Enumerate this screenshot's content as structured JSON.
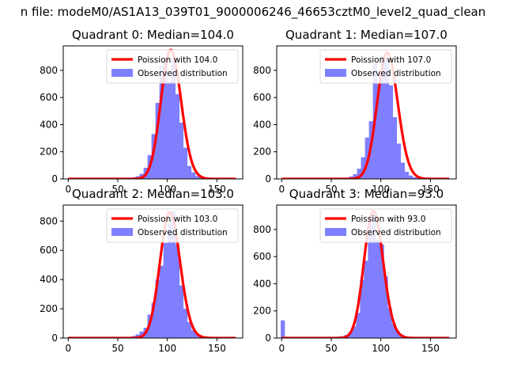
{
  "figure": {
    "suptitle": "n file: modeM0/AS1A13_039T01_9000006246_46653cztM0_level2_quad_clean"
  },
  "chart_data": [
    {
      "type": "bar",
      "title": "Quadrant 0: Median=104.0",
      "xlim": [
        -5,
        176
      ],
      "ylim": [
        0,
        980
      ],
      "xticks": [
        0,
        50,
        100,
        150
      ],
      "yticks": [
        0,
        200,
        400,
        600,
        800
      ],
      "legend_position": "top-right",
      "series": [
        {
          "name": "Poission with 104.0",
          "kind": "line",
          "color": "#ff0000",
          "mean": 104.0,
          "peak": 950,
          "x_range": [
            0,
            169
          ]
        },
        {
          "name": "Observed distribution",
          "kind": "histogram",
          "color": "#7f7fff",
          "bin_edges": [
            60,
            64,
            68,
            72,
            76,
            80,
            84,
            88,
            92,
            96,
            100,
            104,
            108,
            112,
            116,
            120,
            124,
            128,
            132,
            136,
            140,
            144,
            148
          ],
          "counts": [
            5,
            12,
            20,
            38,
            82,
            175,
            330,
            560,
            835,
            890,
            715,
            890,
            625,
            415,
            230,
            95,
            48,
            22,
            12,
            8,
            5,
            3
          ]
        }
      ]
    },
    {
      "type": "bar",
      "title": "Quadrant 1: Median=107.0",
      "xlim": [
        -5,
        176
      ],
      "ylim": [
        0,
        980
      ],
      "xticks": [
        0,
        50,
        100,
        150
      ],
      "yticks": [
        0,
        200,
        400,
        600,
        800
      ],
      "legend_position": "top-right",
      "series": [
        {
          "name": "Poission with 107.0",
          "kind": "line",
          "color": "#ff0000",
          "mean": 107.0,
          "peak": 930,
          "x_range": [
            0,
            169
          ]
        },
        {
          "name": "Observed distribution",
          "kind": "histogram",
          "color": "#7f7fff",
          "bin_edges": [
            60,
            64,
            68,
            72,
            76,
            80,
            84,
            88,
            92,
            96,
            100,
            104,
            108,
            112,
            116,
            120,
            124,
            128,
            132,
            136,
            140,
            144,
            148
          ],
          "counts": [
            4,
            10,
            18,
            35,
            75,
            160,
            305,
            425,
            850,
            700,
            905,
            880,
            690,
            455,
            260,
            120,
            52,
            25,
            12,
            7,
            4,
            2
          ]
        }
      ]
    },
    {
      "type": "bar",
      "title": "Quadrant 2: Median=103.0",
      "xlim": [
        -5,
        176
      ],
      "ylim": [
        0,
        910
      ],
      "xticks": [
        0,
        50,
        100,
        150
      ],
      "yticks": [
        0,
        200,
        400,
        600,
        800
      ],
      "legend_position": "top-right",
      "series": [
        {
          "name": "Poission with 103.0",
          "kind": "line",
          "color": "#ff0000",
          "mean": 103.0,
          "peak": 860,
          "x_range": [
            0,
            169
          ]
        },
        {
          "name": "Observed distribution",
          "kind": "histogram",
          "color": "#7f7fff",
          "bin_edges": [
            60,
            64,
            68,
            72,
            76,
            80,
            84,
            88,
            92,
            96,
            100,
            104,
            108,
            112,
            116,
            120,
            124,
            128,
            132,
            136,
            140,
            144,
            148
          ],
          "counts": [
            6,
            14,
            25,
            45,
            70,
            160,
            240,
            400,
            495,
            650,
            780,
            870,
            640,
            360,
            200,
            110,
            55,
            28,
            14,
            8,
            4,
            2
          ]
        }
      ]
    },
    {
      "type": "bar",
      "title": "Quadrant 3: Median=93.0",
      "xlim": [
        -5,
        176
      ],
      "ylim": [
        0,
        980
      ],
      "xticks": [
        0,
        50,
        100,
        150
      ],
      "yticks": [
        0,
        200,
        400,
        600,
        800
      ],
      "legend_position": "top-right",
      "series": [
        {
          "name": "Poission with 93.0",
          "kind": "line",
          "color": "#ff0000",
          "mean": 93.0,
          "peak": 935,
          "x_range": [
            0,
            169
          ]
        },
        {
          "name": "Observed distribution",
          "kind": "histogram",
          "color": "#7f7fff",
          "bin_edges": [
            -1,
            3,
            7,
            11,
            15,
            19,
            23,
            27,
            31,
            35,
            39,
            43,
            47,
            51,
            55,
            59,
            63,
            67,
            71,
            75,
            79,
            83,
            87,
            91,
            95,
            99,
            103,
            107,
            111,
            115,
            119,
            123,
            127,
            131,
            135,
            139,
            143
          ],
          "counts": [
            130,
            3,
            2,
            2,
            2,
            3,
            2,
            3,
            3,
            3,
            4,
            5,
            6,
            7,
            10,
            14,
            22,
            40,
            85,
            185,
            430,
            570,
            840,
            910,
            725,
            690,
            455,
            220,
            105,
            50,
            25,
            12,
            6,
            3,
            2,
            1
          ]
        }
      ]
    }
  ]
}
